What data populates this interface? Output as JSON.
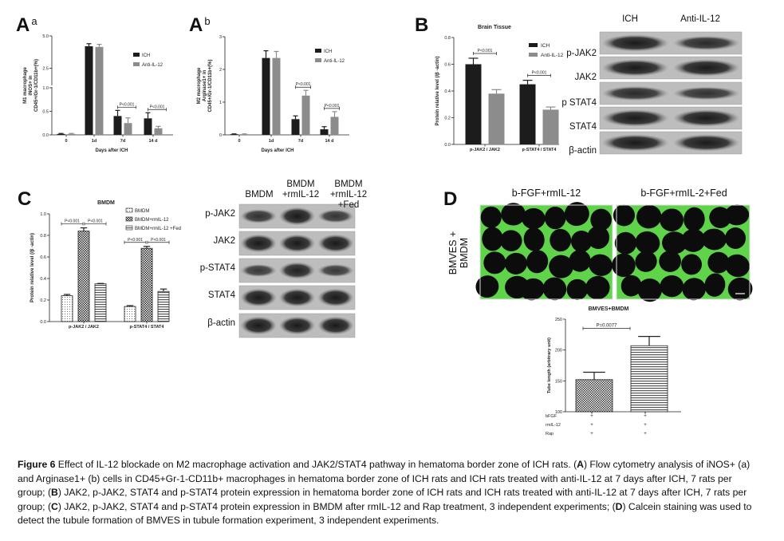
{
  "panels": {
    "Aa": {
      "letter": "A",
      "sub": "a"
    },
    "Ab": {
      "letter": "A",
      "sub": "b"
    },
    "B": {
      "letter": "B"
    },
    "C": {
      "letter": "C"
    },
    "D": {
      "letter": "D"
    }
  },
  "chart_data": [
    {
      "id": "Aa",
      "type": "bar",
      "title": "",
      "xlabel": "Days after ICH",
      "ylabel": [
        "M1 macrophage",
        "iNOS+ in",
        "CD45+/Gr-1/CD11b+(%)"
      ],
      "categories": [
        "0",
        "1d",
        "7d",
        "14 d"
      ],
      "yticks": [
        "0.0",
        "0.5",
        "1.0",
        "2.5",
        "5.0"
      ],
      "ylim": [
        0,
        5
      ],
      "axis_break": 1.0,
      "series": [
        {
          "name": "ICH",
          "color": "#1c1c1c",
          "values": [
            0.02,
            4.2,
            0.4,
            0.35
          ],
          "errors": [
            0.01,
            0.2,
            0.12,
            0.12
          ]
        },
        {
          "name": "Anti-IL-12",
          "color": "#8c8c8c",
          "values": [
            0.02,
            4.15,
            0.25,
            0.14
          ],
          "errors": [
            0.01,
            0.2,
            0.11,
            0.04
          ]
        }
      ],
      "annotations": [
        {
          "text": "P<0.001",
          "category": 2
        },
        {
          "text": "P<0.001",
          "category": 3
        }
      ],
      "legend": "top-right"
    },
    {
      "id": "Ab",
      "type": "bar",
      "title": "",
      "xlabel": "Days after ICH",
      "ylabel": [
        "M2 macrophage",
        "Arginase1+ in",
        "CD45+/Gr-1/CD11b+(%)"
      ],
      "categories": [
        "0",
        "1d",
        "7d",
        "14 d"
      ],
      "yticks": [
        "0",
        "1",
        "2",
        "3"
      ],
      "ylim": [
        0,
        3
      ],
      "series": [
        {
          "name": "ICH",
          "color": "#1c1c1c",
          "values": [
            0.02,
            2.35,
            0.48,
            0.17
          ],
          "errors": [
            0.01,
            0.22,
            0.1,
            0.08
          ]
        },
        {
          "name": "Anti-IL-12",
          "color": "#8c8c8c",
          "values": [
            0.02,
            2.35,
            1.2,
            0.55
          ],
          "errors": [
            0.01,
            0.2,
            0.16,
            0.16
          ]
        }
      ],
      "annotations": [
        {
          "text": "P<0.001",
          "category": 2
        },
        {
          "text": "P<0.001",
          "category": 3
        }
      ],
      "legend": "top-right"
    },
    {
      "id": "B",
      "type": "bar",
      "title": "Brain Tissue",
      "xlabel": "",
      "ylabel": [
        "Protein relative level (/β -actin)"
      ],
      "categories": [
        "p-JAK2 / JAK2",
        "p-STAT4 / STAT4"
      ],
      "yticks": [
        "0.0",
        "0.2",
        "0.4",
        "0.6",
        "0.8"
      ],
      "ylim": [
        0,
        0.8
      ],
      "series": [
        {
          "name": "ICH",
          "color": "#1c1c1c",
          "values": [
            0.6,
            0.45
          ],
          "errors": [
            0.045,
            0.03
          ]
        },
        {
          "name": "Anti-IL-12",
          "color": "#8c8c8c",
          "values": [
            0.38,
            0.26
          ],
          "errors": [
            0.03,
            0.02
          ]
        }
      ],
      "annotations": [
        {
          "text": "P<0.001",
          "category": 0
        },
        {
          "text": "P<0.001",
          "category": 1
        }
      ],
      "legend": "top-right"
    },
    {
      "id": "C",
      "type": "bar",
      "title": "BMDM",
      "xlabel": "",
      "ylabel": [
        "Protein relative level (/β -actin)"
      ],
      "categories": [
        "p-JAK2 / JAK2",
        "p-STAT4 / STAT4"
      ],
      "yticks": [
        "0.0",
        "0.2",
        "0.4",
        "0.6",
        "0.8",
        "1.0"
      ],
      "ylim": [
        0,
        1.0
      ],
      "series": [
        {
          "name": "BMDM",
          "pattern": "dots",
          "values": [
            0.24,
            0.14
          ],
          "errors": [
            0.012,
            0.008
          ]
        },
        {
          "name": "BMDM+rmIL-12",
          "pattern": "checker",
          "values": [
            0.84,
            0.68
          ],
          "errors": [
            0.03,
            0.018
          ]
        },
        {
          "name": "BMDM+rmIL-12 +Fed",
          "pattern": "hlines",
          "values": [
            0.35,
            0.28
          ],
          "errors": [
            0.004,
            0.022
          ]
        }
      ],
      "annotations": [
        {
          "text": "P<0.001",
          "category": 0,
          "from": 0,
          "to": 1
        },
        {
          "text": "P<0.001",
          "category": 0,
          "from": 1,
          "to": 2
        },
        {
          "text": "P<0.001",
          "category": 1,
          "from": 0,
          "to": 1
        },
        {
          "text": "P<0.001",
          "category": 1,
          "from": 1,
          "to": 2
        }
      ],
      "legend": "top-right"
    },
    {
      "id": "D",
      "type": "bar",
      "title": "BMVES+BMDM",
      "xlabel": "",
      "ylabel": [
        "Tube length (arbitrary unit)"
      ],
      "categories": [
        "",
        ""
      ],
      "yticks": [
        "100",
        "150",
        "200",
        "250"
      ],
      "ylim": [
        100,
        250
      ],
      "series": [
        {
          "patterns": [
            "checker",
            "hlines"
          ],
          "values": [
            152,
            207
          ],
          "errors": [
            12,
            15
          ]
        }
      ],
      "annotations": [
        {
          "text": "P=0.0077"
        }
      ],
      "treatment_rows": [
        {
          "label": "bFGF",
          "marks": [
            "+",
            "+"
          ]
        },
        {
          "label": "rmIL-12",
          "marks": [
            "+",
            "+"
          ]
        },
        {
          "label": "Rap",
          "marks": [
            "+",
            "+"
          ]
        }
      ]
    }
  ],
  "blotB": {
    "headers": [
      "ICH",
      "Anti-IL-12"
    ],
    "rows": [
      "p-JAK2",
      "JAK2",
      "p STAT4",
      "STAT4",
      "β-actin"
    ]
  },
  "blotC": {
    "headers": [
      "BMDM",
      "BMDM\n+rmIL-12",
      "BMDM\n+rmIL-12 +Fed"
    ],
    "rows": [
      "p-JAK2",
      "JAK2",
      "p-STAT4",
      "STAT4",
      "β-actin"
    ]
  },
  "micrographs": {
    "side_label": "BMVES +\nBMDM",
    "headers": [
      "b-FGF+rmIL-12",
      "b-FGF+rmIL-2+Fed"
    ],
    "stain_color": "#5fd34a"
  },
  "caption": {
    "lines": [
      [
        {
          "t": "Figure 6",
          "b": true
        },
        {
          "t": " Effect of IL-12 blockade on M2 macrophage activation and JAK2/STAT4 pathway in hematoma border zone of ICH rats. ("
        },
        {
          "t": "A",
          "b": true
        },
        {
          "t": ") Flow cytometry analysis of iNOS+ (a)"
        }
      ],
      [
        {
          "t": "and Arginase1+ (b) cells in CD45+Gr-1-CD11b+ macrophages in hematoma border zone of ICH rats and ICH rats treated with anti-IL-12 at 7 days after ICH, 7 rats per"
        }
      ],
      [
        {
          "t": "group; ("
        },
        {
          "t": "B",
          "b": true
        },
        {
          "t": ") JAK2, p-JAK2, STAT4 and p-STAT4 protein expression in hematoma border zone of ICH rats and ICH rats treated with anti-IL-12 at 7 days after ICH, 7 rats per"
        }
      ],
      [
        {
          "t": "group; ("
        },
        {
          "t": "C",
          "b": true
        },
        {
          "t": ") JAK2, p-JAK2, STAT4 and p-STAT4 protein expression in BMDM after rmIL-12 and Rap treatment, 3 independent experiments; ("
        },
        {
          "t": "D",
          "b": true
        },
        {
          "t": ") Calcein staining was used to"
        }
      ],
      [
        {
          "t": "detect the tubule formation of BMVES in tubule formation experiment, 3 independent experiments."
        }
      ]
    ]
  }
}
